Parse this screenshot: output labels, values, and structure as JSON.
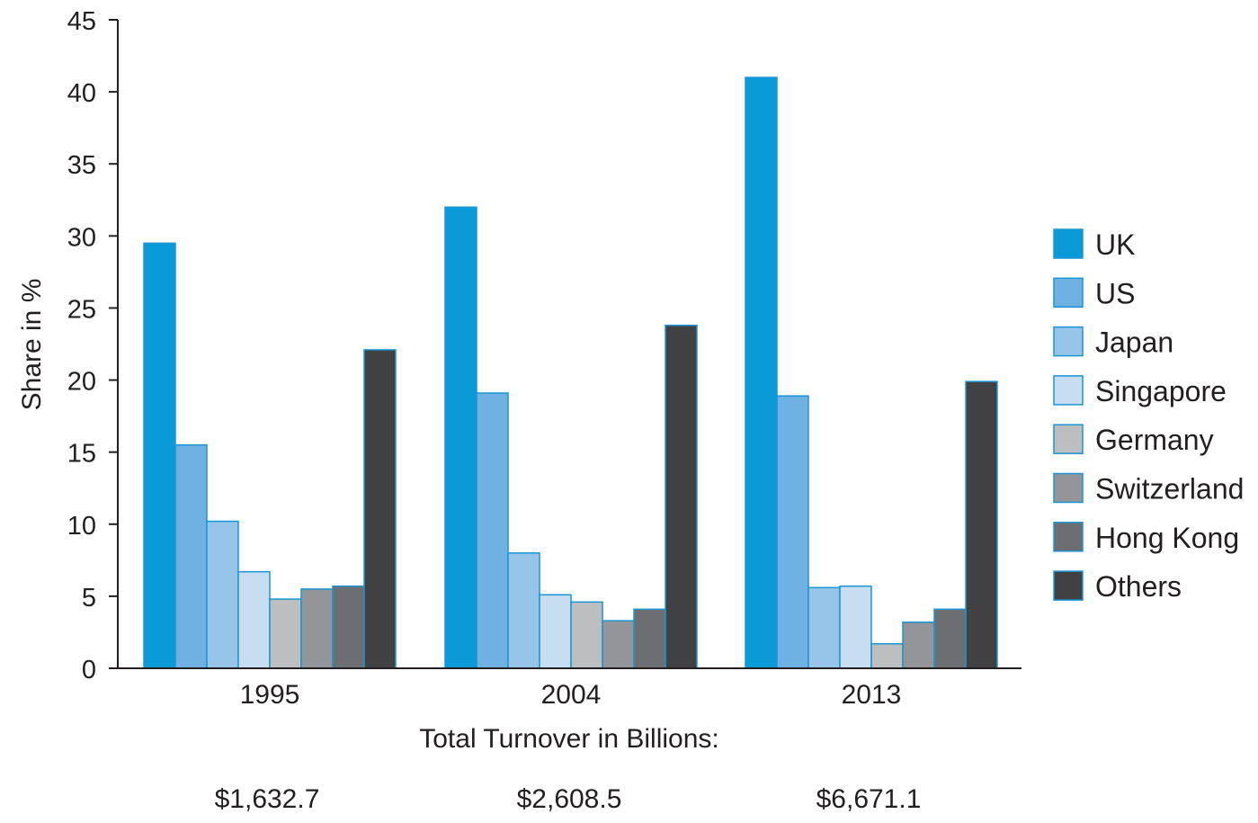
{
  "chart_data": {
    "type": "bar",
    "categories": [
      "1995",
      "2004",
      "2013"
    ],
    "ylabel": "Share in %",
    "ylim": [
      0,
      45
    ],
    "yticks": [
      0,
      5,
      10,
      15,
      20,
      25,
      30,
      35,
      40,
      45
    ],
    "xlabel": "Total Turnover in Billions:",
    "category_totals": [
      "$1,632.7",
      "$2,608.5",
      "$6,671.1"
    ],
    "legend_position": "right",
    "grid": false,
    "series": [
      {
        "name": "UK",
        "color": "#0a9ad8",
        "values": [
          29.5,
          32.0,
          41.0
        ]
      },
      {
        "name": "US",
        "color": "#6eb1e2",
        "values": [
          15.5,
          19.1,
          18.9
        ]
      },
      {
        "name": "Japan",
        "color": "#97c5ea",
        "values": [
          10.2,
          8.0,
          5.6
        ]
      },
      {
        "name": "Singapore",
        "color": "#c6ddf2",
        "values": [
          6.7,
          5.1,
          5.7
        ]
      },
      {
        "name": "Germany",
        "color": "#bcbec0",
        "values": [
          4.8,
          4.6,
          1.7
        ]
      },
      {
        "name": "Switzerland",
        "color": "#939598",
        "values": [
          5.5,
          3.3,
          3.2
        ]
      },
      {
        "name": "Hong Kong",
        "color": "#6d6e71",
        "values": [
          5.7,
          4.1,
          4.1
        ]
      },
      {
        "name": "Others",
        "color": "#414042",
        "values": [
          22.1,
          23.8,
          19.9
        ]
      }
    ]
  }
}
